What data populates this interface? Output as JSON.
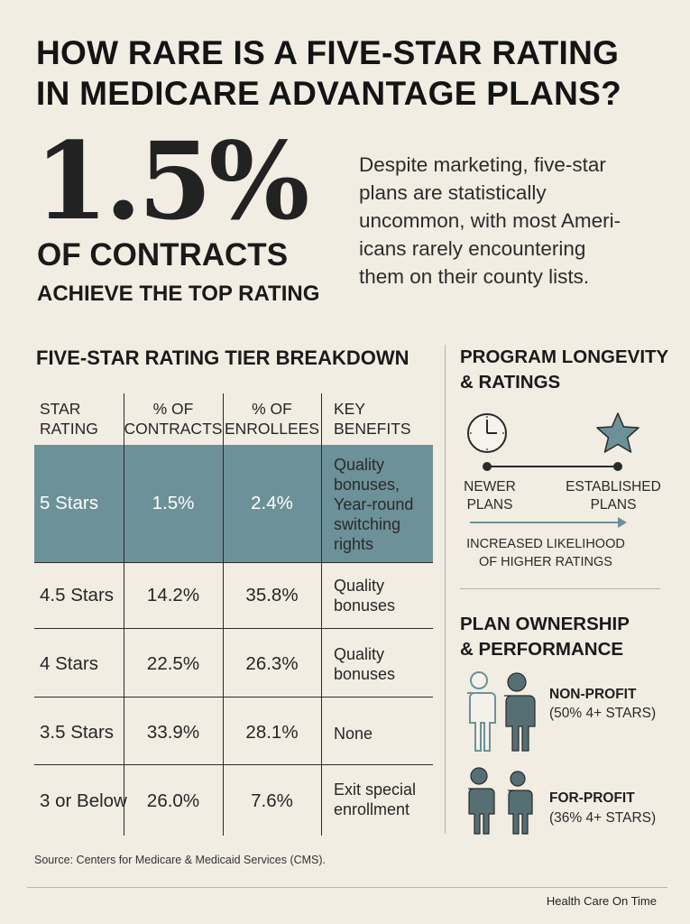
{
  "title": {
    "line1": "HOW RARE IS A FIVE-STAR RATING",
    "line2": "IN MEDICARE ADVANTAGE PLANS?"
  },
  "headline_stat": {
    "value": "1.5%",
    "line1": "OF CONTRACTS",
    "line2": "ACHIEVE THE TOP RATING"
  },
  "intro": {
    "lines": [
      "Despite marketing, five-star",
      "plans are statistically",
      "uncommon, with most Ameri-",
      "icans rarely encountering",
      "them on their county lists."
    ]
  },
  "table": {
    "title": "FIVE-STAR RATING TIER BREAKDOWN",
    "headers": [
      [
        "STAR",
        "RATING"
      ],
      [
        "% OF",
        "CONTRACTS"
      ],
      [
        "% OF",
        "ENROLLEES"
      ],
      [
        "KEY",
        "BENEFITS"
      ]
    ],
    "rows": [
      {
        "rating": "5 Stars",
        "contracts": "1.5%",
        "enrollees": "2.4%",
        "benefits": [
          "Quality",
          "bonuses,",
          "Year-round",
          "switching",
          "rights"
        ],
        "highlight": true
      },
      {
        "rating": "4.5 Stars",
        "contracts": "14.2%",
        "enrollees": "35.8%",
        "benefits": [
          "Quality",
          "bonuses"
        ],
        "highlight": false
      },
      {
        "rating": "4 Stars",
        "contracts": "22.5%",
        "enrollees": "26.3%",
        "benefits": [
          "Quality",
          "bonuses"
        ],
        "highlight": false
      },
      {
        "rating": "3.5 Stars",
        "contracts": "33.9%",
        "enrollees": "28.1%",
        "benefits": [
          "None"
        ],
        "highlight": false
      },
      {
        "rating": "3 or Below",
        "contracts": "26.0%",
        "enrollees": "7.6%",
        "benefits": [
          "Exit special",
          "enrollment"
        ],
        "highlight": false
      }
    ]
  },
  "longevity": {
    "title_line1": "PROGRAM LONGEVITY",
    "title_line2": "& RATINGS",
    "left_icon": "clock-icon",
    "right_icon": "star-icon",
    "left_label": [
      "NEWER",
      "PLANS"
    ],
    "right_label": [
      "ESTABLISHED",
      "PLANS"
    ],
    "arrow_label": [
      "INCREASED LIKELIHOOD",
      "OF HIGHER RATINGS"
    ]
  },
  "ownership": {
    "title_line1": "PLAN OWNERSHIP",
    "title_line2": "& PERFORMANCE",
    "nonprofit": {
      "label": "NON-PROFIT",
      "detail": "(50% 4+ STARS)",
      "icon": "people-icon"
    },
    "forprofit": {
      "label": "FOR-PROFIT",
      "detail": "(36% 4+ STARS)",
      "icon": "people-icon"
    }
  },
  "colors": {
    "background": "#f1ede3",
    "accent": "#6d9198",
    "accent_dark": "#556f74",
    "text": "#1f1f1f"
  },
  "source": "Source: Centers for Medicare & Medicaid Services (CMS).",
  "brand": "Health Care On Time"
}
